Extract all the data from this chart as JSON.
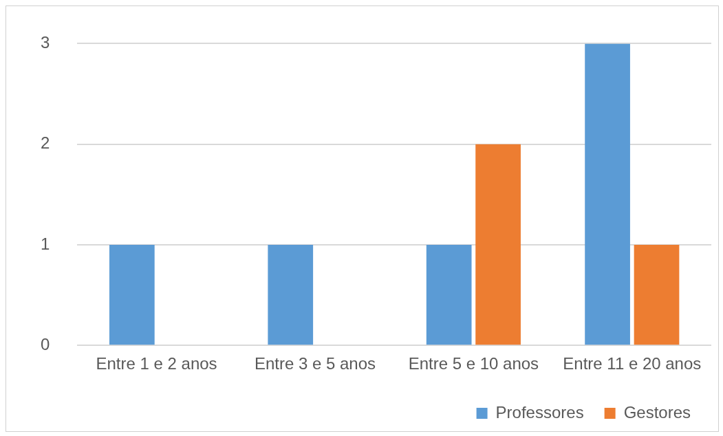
{
  "chart_data": {
    "type": "bar",
    "categories": [
      "Entre 1 e 2 anos",
      "Entre 3 e 5 anos",
      "Entre 5 e 10 anos",
      "Entre 11 e 20 anos"
    ],
    "series": [
      {
        "name": "Professores",
        "color": "#5b9bd5",
        "values": [
          1,
          1,
          1,
          3
        ]
      },
      {
        "name": "Gestores",
        "color": "#ed7d31",
        "values": [
          null,
          null,
          2,
          1
        ]
      }
    ],
    "ylim": [
      0,
      3
    ],
    "yticks": [
      0,
      1,
      2,
      3
    ],
    "grid": "y",
    "legend": "bottom right"
  }
}
